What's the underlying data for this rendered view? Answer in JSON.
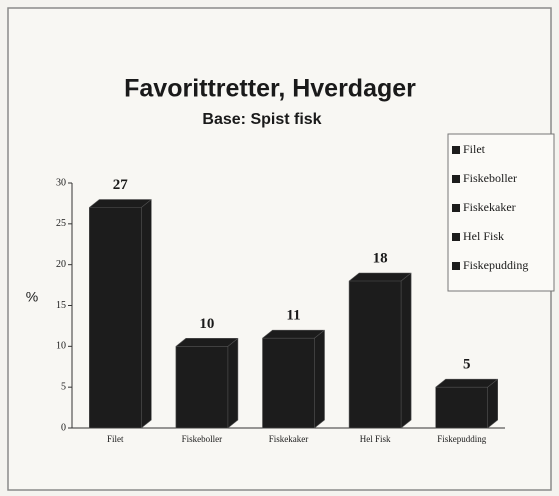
{
  "chart_data": {
    "type": "bar3d",
    "title": "Favorittretter, Hverdager",
    "subtitle": "Base: Spist fisk",
    "ylabel": "%",
    "categories": [
      "Filet",
      "Fiskeboller",
      "Fiskekaker",
      "Hel Fisk",
      "Fiskepudding"
    ],
    "values": [
      27,
      10,
      11,
      18,
      5
    ],
    "color": "#1c1c1c",
    "ylim": [
      0,
      30
    ],
    "yticks": [
      0,
      5,
      10,
      15,
      20,
      25,
      30
    ],
    "legend": "right"
  }
}
